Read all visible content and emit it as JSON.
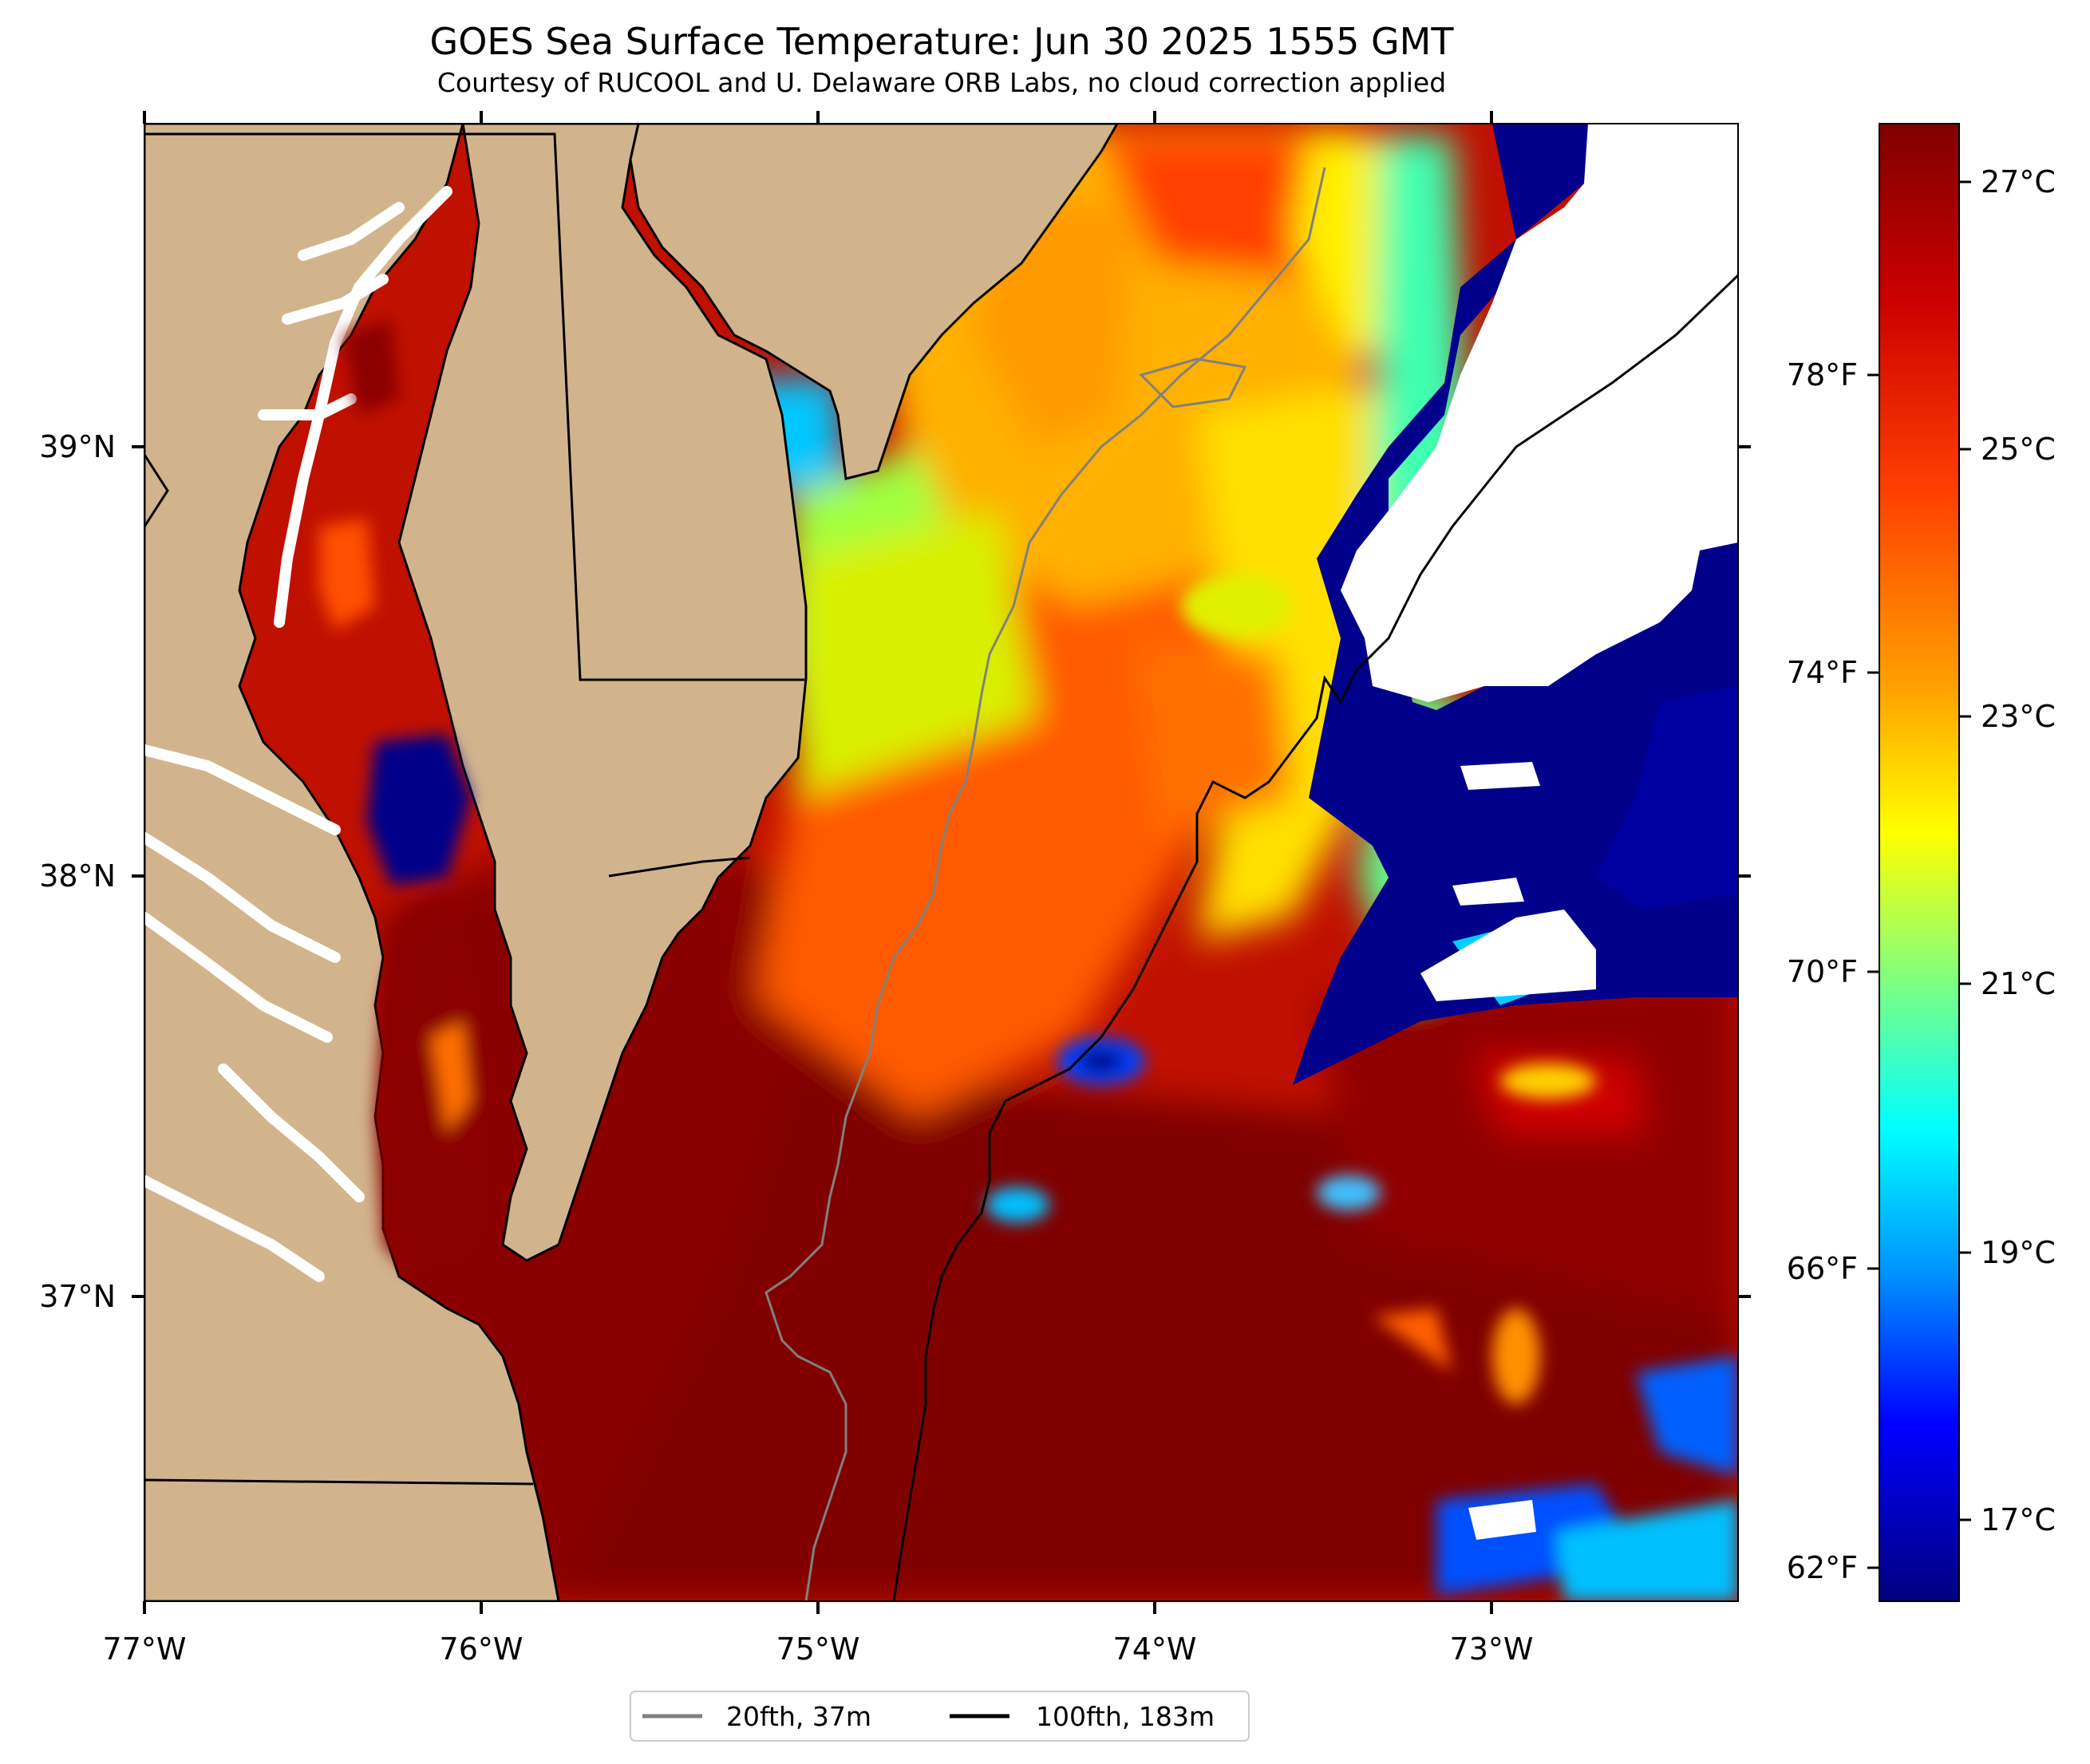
{
  "title": "GOES Sea Surface Temperature: Jun 30 2025 1555 GMT",
  "subtitle": "Courtesy of RUCOOL and U. Delaware ORB Labs, no cloud correction applied",
  "axes": {
    "lon_ticks": [
      "77°W",
      "76°W",
      "75°W",
      "74°W",
      "73°W"
    ],
    "lat_ticks": [
      "39°N",
      "38°N",
      "37°N"
    ]
  },
  "colorbar": {
    "celsius_ticks": [
      "27°C",
      "25°C",
      "23°C",
      "21°C",
      "19°C",
      "17°C"
    ],
    "fahrenheit_ticks": [
      "78°F",
      "74°F",
      "70°F",
      "66°F",
      "62°F"
    ],
    "colormap": [
      "#800000",
      "#ff0000",
      "#ff8000",
      "#ffff00",
      "#80ff80",
      "#00ffff",
      "#0080ff",
      "#0000ff",
      "#000080"
    ]
  },
  "legend": {
    "items": [
      {
        "label": "20fth, 37m",
        "color": "#808080"
      },
      {
        "label": "100fth, 183m",
        "color": "#000000"
      }
    ]
  },
  "colors": {
    "land": "#d2b48c",
    "cloud": "#ffffff",
    "warm": "#800000",
    "cool": "#000080"
  }
}
